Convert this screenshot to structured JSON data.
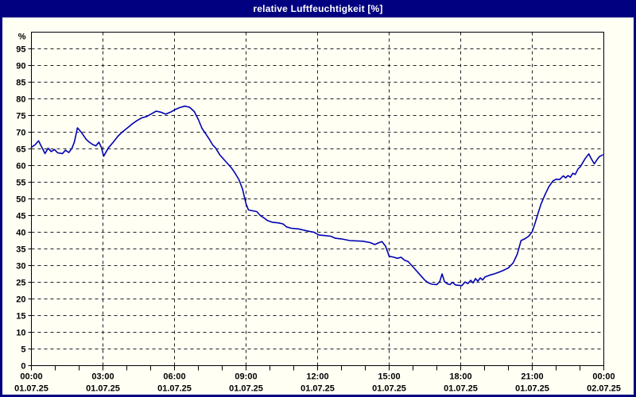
{
  "header": {
    "title": "relative Luftfeuchtigkeit [%]"
  },
  "colors": {
    "frame_navy": "#000080",
    "title_text": "#ffffff",
    "plot_background": "#fffff4",
    "plot_border": "#000000",
    "grid": "#1f1f1f",
    "tick_text": "#000000",
    "series_line": "#0000b4"
  },
  "chart_data": {
    "type": "line",
    "title": "relative Luftfeuchtigkeit [%]",
    "ylabel": "%",
    "ylim": [
      0,
      100
    ],
    "xlim_hours": [
      0,
      24
    ],
    "grid": "dashed, horizontal every 5%, vertical every 3h, minor hour ticks",
    "legend": "none",
    "y_axis": {
      "unit_label": "%",
      "ticks": [
        95,
        90,
        85,
        80,
        75,
        70,
        65,
        60,
        55,
        50,
        45,
        40,
        35,
        30,
        25,
        20,
        15,
        10,
        5,
        0
      ]
    },
    "x_axis": {
      "ticks": [
        {
          "hour": 0,
          "time": "00:00",
          "date": "01.07.25"
        },
        {
          "hour": 3,
          "time": "03:00",
          "date": "01.07.25"
        },
        {
          "hour": 6,
          "time": "06:00",
          "date": "01.07.25"
        },
        {
          "hour": 9,
          "time": "09:00",
          "date": "01.07.25"
        },
        {
          "hour": 12,
          "time": "12:00",
          "date": "01.07.25"
        },
        {
          "hour": 15,
          "time": "15:00",
          "date": "01.07.25"
        },
        {
          "hour": 18,
          "time": "18:00",
          "date": "01.07.25"
        },
        {
          "hour": 21,
          "time": "21:00",
          "date": "01.07.25"
        },
        {
          "hour": 24,
          "time": "00:00",
          "date": "02.07.25"
        }
      ]
    },
    "series": [
      {
        "name": "relative Luftfeuchtigkeit",
        "color": "#0000b4",
        "points": [
          [
            0.0,
            65.5
          ],
          [
            0.15,
            66.2
          ],
          [
            0.3,
            67.4
          ],
          [
            0.45,
            65.3
          ],
          [
            0.57,
            63.6
          ],
          [
            0.7,
            65.2
          ],
          [
            0.83,
            64.2
          ],
          [
            0.97,
            64.8
          ],
          [
            1.1,
            63.8
          ],
          [
            1.3,
            63.6
          ],
          [
            1.43,
            64.6
          ],
          [
            1.57,
            63.9
          ],
          [
            1.7,
            65.2
          ],
          [
            1.8,
            67.0
          ],
          [
            1.93,
            71.3
          ],
          [
            2.1,
            69.9
          ],
          [
            2.3,
            67.8
          ],
          [
            2.43,
            67.0
          ],
          [
            2.57,
            66.3
          ],
          [
            2.7,
            65.9
          ],
          [
            2.83,
            67.0
          ],
          [
            2.93,
            65.5
          ],
          [
            3.03,
            62.8
          ],
          [
            3.23,
            65.3
          ],
          [
            3.43,
            67.0
          ],
          [
            3.63,
            68.8
          ],
          [
            3.83,
            70.2
          ],
          [
            4.03,
            71.3
          ],
          [
            4.23,
            72.5
          ],
          [
            4.43,
            73.5
          ],
          [
            4.63,
            74.3
          ],
          [
            4.83,
            74.7
          ],
          [
            5.03,
            75.5
          ],
          [
            5.23,
            76.3
          ],
          [
            5.43,
            76.0
          ],
          [
            5.63,
            75.4
          ],
          [
            5.83,
            76.0
          ],
          [
            6.03,
            76.8
          ],
          [
            6.23,
            77.4
          ],
          [
            6.43,
            77.8
          ],
          [
            6.63,
            77.5
          ],
          [
            6.83,
            76.2
          ],
          [
            7.0,
            73.8
          ],
          [
            7.15,
            71.2
          ],
          [
            7.3,
            69.6
          ],
          [
            7.45,
            68.0
          ],
          [
            7.6,
            66.2
          ],
          [
            7.72,
            65.3
          ],
          [
            7.9,
            63.2
          ],
          [
            8.05,
            62.0
          ],
          [
            8.2,
            60.8
          ],
          [
            8.4,
            59.2
          ],
          [
            8.55,
            57.6
          ],
          [
            8.7,
            55.8
          ],
          [
            8.85,
            53.0
          ],
          [
            9.0,
            48.5
          ],
          [
            9.1,
            46.7
          ],
          [
            9.3,
            46.4
          ],
          [
            9.45,
            46.2
          ],
          [
            9.6,
            45.0
          ],
          [
            9.75,
            44.3
          ],
          [
            9.9,
            43.5
          ],
          [
            10.1,
            43.0
          ],
          [
            10.35,
            42.8
          ],
          [
            10.55,
            42.5
          ],
          [
            10.7,
            41.6
          ],
          [
            10.9,
            41.2
          ],
          [
            11.2,
            41.0
          ],
          [
            11.55,
            40.4
          ],
          [
            11.85,
            40.0
          ],
          [
            12.05,
            39.2
          ],
          [
            12.3,
            39.0
          ],
          [
            12.55,
            38.8
          ],
          [
            12.75,
            38.2
          ],
          [
            13.0,
            38.0
          ],
          [
            13.35,
            37.5
          ],
          [
            13.9,
            37.3
          ],
          [
            14.2,
            36.9
          ],
          [
            14.4,
            36.3
          ],
          [
            14.55,
            36.8
          ],
          [
            14.7,
            37.2
          ],
          [
            14.85,
            35.8
          ],
          [
            15.0,
            32.8
          ],
          [
            15.2,
            32.5
          ],
          [
            15.35,
            32.2
          ],
          [
            15.5,
            32.5
          ],
          [
            15.65,
            31.6
          ],
          [
            15.8,
            31.2
          ],
          [
            15.95,
            30.0
          ],
          [
            16.1,
            28.8
          ],
          [
            16.3,
            27.2
          ],
          [
            16.5,
            25.6
          ],
          [
            16.65,
            24.8
          ],
          [
            16.8,
            24.4
          ],
          [
            17.0,
            24.3
          ],
          [
            17.12,
            25.2
          ],
          [
            17.22,
            27.5
          ],
          [
            17.32,
            25.2
          ],
          [
            17.45,
            24.5
          ],
          [
            17.55,
            24.3
          ],
          [
            17.65,
            25.0
          ],
          [
            17.78,
            24.2
          ],
          [
            17.9,
            24.1
          ],
          [
            18.05,
            24.0
          ],
          [
            18.18,
            25.1
          ],
          [
            18.3,
            24.6
          ],
          [
            18.42,
            25.6
          ],
          [
            18.52,
            24.8
          ],
          [
            18.62,
            26.1
          ],
          [
            18.72,
            25.3
          ],
          [
            18.82,
            26.3
          ],
          [
            18.92,
            25.7
          ],
          [
            19.02,
            26.6
          ],
          [
            19.2,
            27.1
          ],
          [
            19.4,
            27.5
          ],
          [
            19.6,
            28.0
          ],
          [
            19.8,
            28.6
          ],
          [
            20.0,
            29.3
          ],
          [
            20.2,
            30.8
          ],
          [
            20.37,
            33.4
          ],
          [
            20.53,
            37.5
          ],
          [
            20.68,
            38.0
          ],
          [
            20.85,
            38.8
          ],
          [
            21.0,
            40.2
          ],
          [
            21.13,
            43.0
          ],
          [
            21.25,
            45.8
          ],
          [
            21.37,
            48.5
          ],
          [
            21.55,
            51.5
          ],
          [
            21.7,
            53.7
          ],
          [
            21.87,
            55.4
          ],
          [
            22.0,
            55.9
          ],
          [
            22.15,
            55.8
          ],
          [
            22.3,
            56.9
          ],
          [
            22.4,
            56.3
          ],
          [
            22.5,
            57.0
          ],
          [
            22.6,
            56.5
          ],
          [
            22.7,
            57.7
          ],
          [
            22.8,
            57.3
          ],
          [
            22.92,
            59.0
          ],
          [
            23.02,
            59.7
          ],
          [
            23.12,
            60.9
          ],
          [
            23.22,
            62.1
          ],
          [
            23.37,
            63.5
          ],
          [
            23.48,
            62.0
          ],
          [
            23.6,
            60.5
          ],
          [
            23.7,
            61.6
          ],
          [
            23.8,
            62.6
          ],
          [
            23.95,
            63.2
          ]
        ]
      }
    ]
  }
}
